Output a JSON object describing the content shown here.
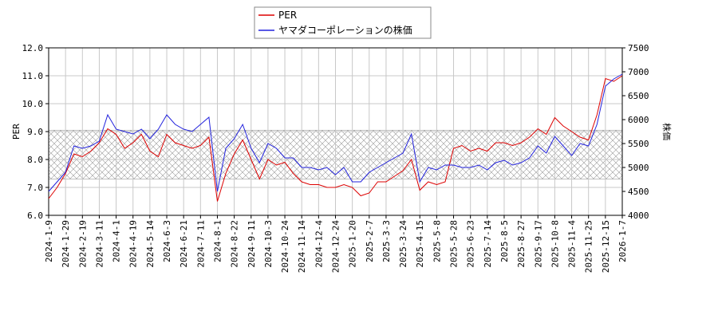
{
  "chart_data": {
    "type": "line",
    "y_label": "PER",
    "y2_label": "株価",
    "categories": [
      "2024-1-9",
      null,
      "2024-1-29",
      null,
      "2024-2-19",
      null,
      "2024-3-11",
      null,
      "2024-4-1",
      null,
      "2024-4-19",
      null,
      "2024-5-14",
      null,
      "2024-6-3",
      null,
      "2024-6-21",
      null,
      "2024-7-11",
      null,
      "2024-8-1",
      null,
      "2024-8-22",
      null,
      "2024-9-11",
      null,
      "2024-10-3",
      null,
      "2024-10-24",
      null,
      "2024-11-14",
      null,
      "2024-12-4",
      null,
      "2024-12-24",
      null,
      "2025-1-20",
      null,
      "2025-2-7",
      null,
      "2025-3-3",
      null,
      "2025-3-24",
      null,
      "2025-4-15",
      null,
      "2025-5-8",
      null,
      "2025-5-28",
      null,
      "2025-6-23",
      null,
      "2025-7-14",
      null,
      "2025-8-5",
      null,
      "2025-8-27",
      null,
      "2025-9-17",
      null,
      "2025-10-8",
      null,
      "2025-11-4",
      null,
      "2025-11-25",
      null,
      "2025-12-15",
      null,
      "2026-1-7"
    ],
    "series": [
      {
        "name": "PER",
        "color": "#dd0000",
        "axis": "y",
        "values": [
          6.6,
          7.0,
          7.5,
          8.2,
          8.1,
          8.3,
          8.6,
          9.1,
          8.9,
          8.4,
          8.6,
          8.9,
          8.3,
          8.1,
          8.9,
          8.6,
          8.5,
          8.4,
          8.5,
          8.8,
          6.5,
          7.5,
          8.2,
          8.7,
          8.0,
          7.3,
          8.0,
          7.8,
          7.9,
          7.5,
          7.2,
          7.1,
          7.1,
          7.0,
          7.0,
          7.1,
          7.0,
          6.7,
          6.8,
          7.2,
          7.2,
          7.4,
          7.6,
          8.0,
          6.9,
          7.2,
          7.1,
          7.2,
          8.4,
          8.5,
          8.3,
          8.4,
          8.3,
          8.6,
          8.6,
          8.5,
          8.6,
          8.8,
          9.1,
          8.9,
          9.5,
          9.2,
          9.0,
          8.8,
          8.7,
          9.6,
          10.9,
          10.8,
          11.0
        ]
      },
      {
        "name": "ヤマダコーポレーションの株価",
        "color": "#2222dd",
        "axis": "y2",
        "values": [
          4500,
          4700,
          4900,
          5450,
          5400,
          5450,
          5550,
          6100,
          5800,
          5750,
          5700,
          5800,
          5600,
          5800,
          6100,
          5900,
          5800,
          5750,
          5900,
          6050,
          4500,
          5400,
          5600,
          5900,
          5400,
          5100,
          5500,
          5400,
          5200,
          5200,
          5000,
          5000,
          4950,
          5000,
          4850,
          5000,
          4700,
          4700,
          4900,
          5000,
          5100,
          5200,
          5300,
          5700,
          4700,
          5000,
          4950,
          5050,
          5050,
          5000,
          5000,
          5050,
          4950,
          5100,
          5150,
          5050,
          5100,
          5200,
          5450,
          5300,
          5650,
          5450,
          5250,
          5500,
          5450,
          5900,
          6700,
          6850,
          6950
        ]
      }
    ],
    "band": [
      7.3,
      9.05
    ],
    "ylim": [
      6,
      12
    ],
    "yticks": [
      {
        "value": 6,
        "label": "6.0"
      },
      {
        "value": 7,
        "label": "7.0"
      },
      {
        "value": 8,
        "label": "8.0"
      },
      {
        "value": 9,
        "label": "9.0"
      },
      {
        "value": 10,
        "label": "10.0"
      },
      {
        "value": 11,
        "label": "11.0"
      },
      {
        "value": 12,
        "label": "12.0"
      }
    ],
    "y2lim": [
      4000,
      7500
    ],
    "y2ticks": [
      4000,
      4500,
      5000,
      5500,
      6000,
      6500,
      7000,
      7500
    ],
    "grid": true
  }
}
